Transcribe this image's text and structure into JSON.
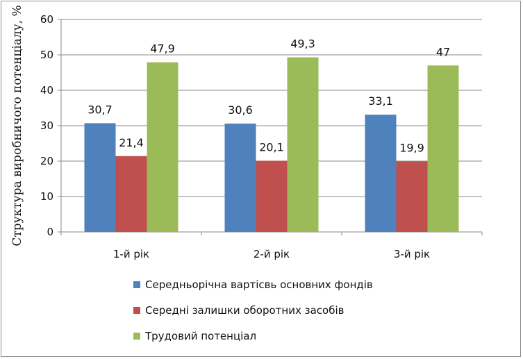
{
  "chart_data": {
    "type": "bar",
    "categories": [
      "1-й рік",
      "2-й рік",
      "3-й рік"
    ],
    "series": [
      {
        "name": "Середньорічна вартісвь основних фондів",
        "values": [
          30.7,
          30.6,
          33.1
        ],
        "labels": [
          "30,7",
          "30,6",
          "33,1"
        ],
        "color": "#4F81BD"
      },
      {
        "name": "Середні залишки оборотних засобів",
        "values": [
          21.4,
          20.1,
          19.9
        ],
        "labels": [
          "21,4",
          "20,1",
          "19,9"
        ],
        "color": "#C0504D"
      },
      {
        "name": "Трудовий потенціал",
        "values": [
          47.9,
          49.3,
          47
        ],
        "labels": [
          "47,9",
          "49,3",
          "47"
        ],
        "color": "#9BBB59"
      }
    ],
    "title": "",
    "xlabel": "",
    "ylabel": "Структура виробничого потенціалу, %",
    "ylim": [
      0,
      60
    ],
    "yticks": [
      0,
      10,
      20,
      30,
      40,
      50,
      60
    ],
    "grid": true,
    "legend_position": "bottom"
  }
}
